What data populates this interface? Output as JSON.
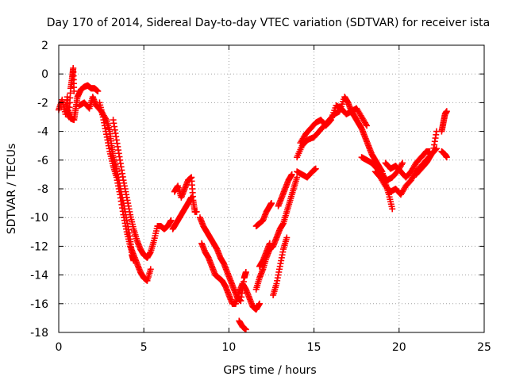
{
  "chart_data": {
    "type": "scatter",
    "title": "Day 170 of 2014, Sidereal Day-to-day VTEC variation (SDTVAR) for receiver ista",
    "xlabel": "GPS time / hours",
    "ylabel": "SDTVAR / TECUs",
    "xlim": [
      0,
      25
    ],
    "ylim": [
      -18,
      2
    ],
    "xticks": [
      0,
      5,
      10,
      15,
      20,
      25
    ],
    "yticks": [
      -18,
      -16,
      -14,
      -12,
      -10,
      -8,
      -6,
      -4,
      -2,
      0,
      2
    ],
    "grid": true,
    "marker": "+",
    "series_color": "#ff0000",
    "series": [
      {
        "name": "SDTVAR",
        "segments": [
          [
            [
              0.0,
              -2.5
            ],
            [
              0.2,
              -1.8
            ],
            [
              0.4,
              -2.8
            ],
            [
              0.5,
              -1.6
            ],
            [
              0.6,
              -3.0
            ],
            [
              0.7,
              -1.0
            ],
            [
              0.8,
              -0.2
            ],
            [
              0.85,
              0.4
            ],
            [
              0.9,
              -1.2
            ]
          ],
          [
            [
              0.5,
              -2.6
            ],
            [
              0.7,
              -3.1
            ],
            [
              0.9,
              -3.2
            ],
            [
              1.0,
              -2.4
            ],
            [
              1.1,
              -1.6
            ],
            [
              1.3,
              -1.1
            ],
            [
              1.5,
              -0.9
            ],
            [
              1.7,
              -0.8
            ],
            [
              1.9,
              -1.0
            ],
            [
              2.1,
              -1.0
            ],
            [
              2.3,
              -1.2
            ]
          ],
          [
            [
              1.2,
              -2.2
            ],
            [
              1.5,
              -2.0
            ],
            [
              1.8,
              -2.4
            ],
            [
              2.0,
              -1.6
            ],
            [
              2.2,
              -2.2
            ],
            [
              2.5,
              -2.6
            ],
            [
              2.8,
              -3.2
            ],
            [
              3.0,
              -4.0
            ],
            [
              3.1,
              -5.0
            ],
            [
              3.2,
              -5.8
            ],
            [
              3.4,
              -6.6
            ],
            [
              3.6,
              -7.8
            ],
            [
              3.8,
              -9.0
            ],
            [
              4.0,
              -10.2
            ],
            [
              4.2,
              -11.5
            ],
            [
              4.3,
              -12.6
            ],
            [
              4.4,
              -13.0
            ]
          ],
          [
            [
              2.4,
              -2.0
            ],
            [
              2.6,
              -3.0
            ],
            [
              2.8,
              -4.2
            ],
            [
              3.0,
              -5.4
            ],
            [
              3.2,
              -6.4
            ],
            [
              3.4,
              -7.2
            ],
            [
              3.6,
              -8.4
            ],
            [
              3.8,
              -9.8
            ],
            [
              4.0,
              -11.0
            ],
            [
              4.2,
              -12.0
            ],
            [
              4.4,
              -12.6
            ],
            [
              4.6,
              -13.2
            ],
            [
              4.8,
              -13.8
            ],
            [
              5.0,
              -14.2
            ],
            [
              5.2,
              -14.4
            ],
            [
              5.4,
              -13.6
            ]
          ],
          [
            [
              3.2,
              -3.2
            ],
            [
              3.4,
              -4.6
            ],
            [
              3.6,
              -6.0
            ],
            [
              3.8,
              -7.4
            ],
            [
              4.0,
              -8.6
            ],
            [
              4.2,
              -9.8
            ],
            [
              4.4,
              -10.8
            ],
            [
              4.6,
              -11.6
            ],
            [
              4.8,
              -12.2
            ],
            [
              5.0,
              -12.6
            ],
            [
              5.2,
              -12.8
            ],
            [
              5.4,
              -12.4
            ],
            [
              5.6,
              -11.6
            ],
            [
              5.8,
              -10.6
            ],
            [
              6.0,
              -10.6
            ],
            [
              6.2,
              -10.8
            ],
            [
              6.4,
              -10.6
            ],
            [
              6.6,
              -10.2
            ]
          ],
          [
            [
              6.7,
              -10.8
            ],
            [
              6.9,
              -10.4
            ],
            [
              7.1,
              -10.0
            ],
            [
              7.3,
              -9.6
            ],
            [
              7.5,
              -9.2
            ],
            [
              7.7,
              -8.8
            ],
            [
              7.8,
              -8.6
            ]
          ],
          [
            [
              6.8,
              -8.2
            ],
            [
              7.0,
              -7.8
            ],
            [
              7.2,
              -8.6
            ],
            [
              7.4,
              -8.0
            ],
            [
              7.6,
              -7.4
            ],
            [
              7.8,
              -7.2
            ],
            [
              7.9,
              -8.8
            ],
            [
              8.0,
              -9.6
            ],
            [
              8.1,
              -9.6
            ]
          ],
          [
            [
              8.3,
              -10.0
            ],
            [
              8.5,
              -10.6
            ],
            [
              8.7,
              -11.0
            ],
            [
              8.9,
              -11.4
            ],
            [
              9.1,
              -11.8
            ],
            [
              9.3,
              -12.2
            ],
            [
              9.5,
              -12.8
            ],
            [
              9.7,
              -13.2
            ],
            [
              9.9,
              -13.8
            ],
            [
              10.1,
              -14.4
            ],
            [
              10.3,
              -15.0
            ],
            [
              10.5,
              -15.6
            ],
            [
              10.7,
              -15.8
            ],
            [
              10.9,
              -14.2
            ],
            [
              11.0,
              -13.8
            ]
          ],
          [
            [
              8.4,
              -11.8
            ],
            [
              8.6,
              -12.4
            ],
            [
              8.8,
              -12.8
            ],
            [
              9.0,
              -13.4
            ],
            [
              9.2,
              -14.0
            ],
            [
              9.4,
              -14.2
            ],
            [
              9.6,
              -14.4
            ],
            [
              9.8,
              -14.8
            ],
            [
              10.0,
              -15.4
            ],
            [
              10.2,
              -16.0
            ],
            [
              10.4,
              -16.0
            ],
            [
              10.6,
              -15.2
            ],
            [
              10.8,
              -14.6
            ],
            [
              11.0,
              -15.0
            ],
            [
              11.2,
              -15.6
            ],
            [
              11.4,
              -16.2
            ],
            [
              11.6,
              -16.4
            ],
            [
              11.8,
              -16.0
            ]
          ],
          [
            [
              10.6,
              -17.2
            ],
            [
              10.8,
              -17.6
            ],
            [
              11.0,
              -17.8
            ]
          ],
          [
            [
              11.6,
              -15.0
            ],
            [
              11.8,
              -14.2
            ],
            [
              12.0,
              -13.6
            ],
            [
              12.2,
              -12.8
            ],
            [
              12.4,
              -12.2
            ],
            [
              12.6,
              -12.0
            ],
            [
              12.8,
              -11.4
            ],
            [
              13.0,
              -10.8
            ],
            [
              13.2,
              -10.4
            ],
            [
              13.4,
              -9.6
            ],
            [
              13.6,
              -8.8
            ],
            [
              13.8,
              -8.0
            ],
            [
              14.0,
              -7.2
            ]
          ],
          [
            [
              11.8,
              -13.4
            ],
            [
              12.0,
              -13.0
            ],
            [
              12.2,
              -12.4
            ],
            [
              12.4,
              -11.8
            ]
          ],
          [
            [
              11.6,
              -10.6
            ],
            [
              11.8,
              -10.4
            ],
            [
              12.0,
              -10.2
            ],
            [
              12.2,
              -9.6
            ],
            [
              12.4,
              -9.2
            ],
            [
              12.5,
              -9.0
            ]
          ],
          [
            [
              12.6,
              -15.4
            ],
            [
              12.8,
              -14.6
            ],
            [
              13.0,
              -13.4
            ],
            [
              13.2,
              -12.2
            ],
            [
              13.4,
              -11.4
            ]
          ],
          [
            [
              12.9,
              -9.2
            ],
            [
              13.1,
              -8.6
            ],
            [
              13.3,
              -8.0
            ],
            [
              13.5,
              -7.4
            ],
            [
              13.7,
              -7.0
            ]
          ],
          [
            [
              14.0,
              -6.8
            ],
            [
              14.3,
              -7.0
            ],
            [
              14.6,
              -7.2
            ],
            [
              14.9,
              -6.8
            ],
            [
              15.1,
              -6.6
            ]
          ],
          [
            [
              14.0,
              -5.8
            ],
            [
              14.3,
              -5.0
            ],
            [
              14.6,
              -4.6
            ],
            [
              15.0,
              -4.4
            ],
            [
              15.3,
              -4.0
            ],
            [
              15.6,
              -3.6
            ],
            [
              15.9,
              -3.2
            ],
            [
              16.2,
              -2.8
            ],
            [
              16.5,
              -2.6
            ],
            [
              16.8,
              -1.6
            ],
            [
              17.0,
              -2.0
            ],
            [
              17.2,
              -2.6
            ],
            [
              17.4,
              -3.0
            ],
            [
              17.6,
              -3.4
            ],
            [
              17.8,
              -3.8
            ],
            [
              18.0,
              -4.4
            ],
            [
              18.2,
              -5.0
            ],
            [
              18.4,
              -5.6
            ],
            [
              18.6,
              -6.0
            ],
            [
              18.8,
              -6.4
            ],
            [
              19.0,
              -6.8
            ],
            [
              19.2,
              -7.6
            ],
            [
              19.4,
              -8.4
            ],
            [
              19.6,
              -9.4
            ]
          ],
          [
            [
              14.2,
              -4.8
            ],
            [
              14.5,
              -4.2
            ],
            [
              14.8,
              -3.8
            ],
            [
              15.1,
              -3.4
            ],
            [
              15.4,
              -3.2
            ],
            [
              15.7,
              -3.6
            ],
            [
              16.0,
              -3.2
            ],
            [
              16.3,
              -2.2
            ],
            [
              16.6,
              -2.4
            ],
            [
              16.9,
              -2.8
            ],
            [
              17.2,
              -2.6
            ],
            [
              17.5,
              -2.4
            ],
            [
              17.8,
              -3.0
            ],
            [
              18.1,
              -3.6
            ]
          ],
          [
            [
              17.8,
              -5.8
            ],
            [
              18.1,
              -6.0
            ],
            [
              18.4,
              -6.2
            ],
            [
              18.7,
              -6.6
            ],
            [
              19.0,
              -7.0
            ],
            [
              19.3,
              -7.4
            ],
            [
              19.6,
              -7.2
            ],
            [
              19.9,
              -6.8
            ],
            [
              20.2,
              -6.2
            ]
          ],
          [
            [
              18.6,
              -6.8
            ],
            [
              18.9,
              -7.2
            ],
            [
              19.2,
              -7.8
            ],
            [
              19.5,
              -8.2
            ],
            [
              19.8,
              -8.0
            ],
            [
              20.1,
              -8.4
            ],
            [
              20.4,
              -7.8
            ],
            [
              20.7,
              -7.4
            ],
            [
              21.0,
              -6.8
            ],
            [
              21.3,
              -6.4
            ],
            [
              21.6,
              -6.0
            ],
            [
              21.9,
              -5.6
            ],
            [
              22.2,
              -5.2
            ]
          ],
          [
            [
              19.2,
              -6.2
            ],
            [
              19.5,
              -6.6
            ],
            [
              19.8,
              -6.4
            ],
            [
              20.1,
              -6.8
            ],
            [
              20.4,
              -7.2
            ],
            [
              20.7,
              -6.8
            ],
            [
              21.0,
              -6.2
            ],
            [
              21.3,
              -5.8
            ],
            [
              21.6,
              -5.4
            ],
            [
              21.8,
              -5.4
            ]
          ],
          [
            [
              21.0,
              -7.0
            ],
            [
              21.3,
              -6.6
            ],
            [
              21.6,
              -6.2
            ],
            [
              21.8,
              -5.8
            ],
            [
              22.0,
              -5.4
            ],
            [
              22.2,
              -4.0
            ]
          ],
          [
            [
              22.5,
              -4.0
            ],
            [
              22.6,
              -3.4
            ],
            [
              22.7,
              -2.8
            ],
            [
              22.8,
              -2.6
            ]
          ],
          [
            [
              22.5,
              -5.4
            ],
            [
              22.7,
              -5.6
            ],
            [
              22.8,
              -5.8
            ]
          ]
        ]
      }
    ]
  }
}
